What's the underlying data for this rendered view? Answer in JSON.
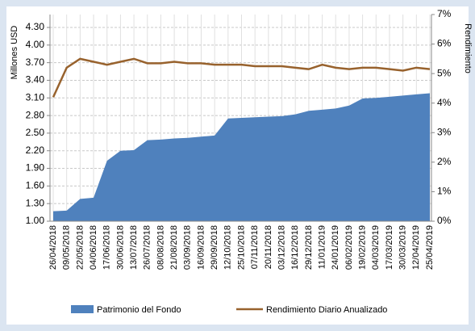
{
  "chart_data": {
    "type": "area-line",
    "categories": [
      "26/04/2018",
      "09/05/2018",
      "22/05/2018",
      "04/06/2018",
      "17/06/2018",
      "30/06/2018",
      "13/07/2018",
      "26/07/2018",
      "08/08/2018",
      "21/08/2018",
      "03/09/2018",
      "16/09/2018",
      "29/09/2018",
      "12/10/2018",
      "25/10/2018",
      "07/11/2018",
      "20/11/2018",
      "03/12/2018",
      "16/12/2018",
      "29/12/2018",
      "11/01/2019",
      "24/01/2019",
      "06/02/2019",
      "19/02/2019",
      "04/03/2019",
      "17/03/2019",
      "30/03/2019",
      "12/04/2019",
      "25/04/2019"
    ],
    "series": [
      {
        "name": "Patrimonio del Fondo",
        "color": "#4f81bd",
        "axis": "y",
        "values": [
          1.17,
          1.18,
          1.38,
          1.4,
          2.03,
          2.2,
          2.21,
          2.38,
          2.39,
          2.41,
          2.42,
          2.44,
          2.46,
          2.75,
          2.76,
          2.77,
          2.78,
          2.79,
          2.82,
          2.88,
          2.9,
          2.92,
          2.97,
          3.09,
          3.1,
          3.12,
          3.14,
          3.16,
          3.18
        ]
      },
      {
        "name": "Rendimiento Diario Anualizado",
        "color": "#98622d",
        "axis": "y2",
        "values": [
          4.2,
          5.2,
          5.5,
          5.4,
          5.3,
          5.4,
          5.5,
          5.35,
          5.35,
          5.4,
          5.35,
          5.35,
          5.3,
          5.3,
          5.3,
          5.25,
          5.25,
          5.25,
          5.2,
          5.15,
          5.3,
          5.2,
          5.15,
          5.2,
          5.2,
          5.15,
          5.1,
          5.2,
          5.15
        ]
      }
    ],
    "ylabel": "Millones USD",
    "y2label": "Rendimiento",
    "ylim": [
      1.0,
      4.52
    ],
    "yticks": [
      {
        "value": 1.0,
        "label": "1.00"
      },
      {
        "value": 1.3,
        "label": "1.30"
      },
      {
        "value": 1.6,
        "label": "1.60"
      },
      {
        "value": 1.9,
        "label": "1.90"
      },
      {
        "value": 2.2,
        "label": "2.20"
      },
      {
        "value": 2.5,
        "label": "2.50"
      },
      {
        "value": 2.8,
        "label": "2.80"
      },
      {
        "value": 3.1,
        "label": "3.10"
      },
      {
        "value": 3.4,
        "label": "3.40"
      },
      {
        "value": 3.7,
        "label": "3.70"
      },
      {
        "value": 4.0,
        "label": "4.00"
      },
      {
        "value": 4.3,
        "label": "4.30"
      }
    ],
    "y2lim": [
      0,
      7
    ],
    "y2ticks": [
      {
        "value": 0,
        "label": "0%"
      },
      {
        "value": 1,
        "label": "1%"
      },
      {
        "value": 2,
        "label": "2%"
      },
      {
        "value": 3,
        "label": "3%"
      },
      {
        "value": 4,
        "label": "4%"
      },
      {
        "value": 5,
        "label": "5%"
      },
      {
        "value": 6,
        "label": "6%"
      },
      {
        "value": 7,
        "label": "7%"
      }
    ],
    "grid": true,
    "legend": "bottom"
  }
}
